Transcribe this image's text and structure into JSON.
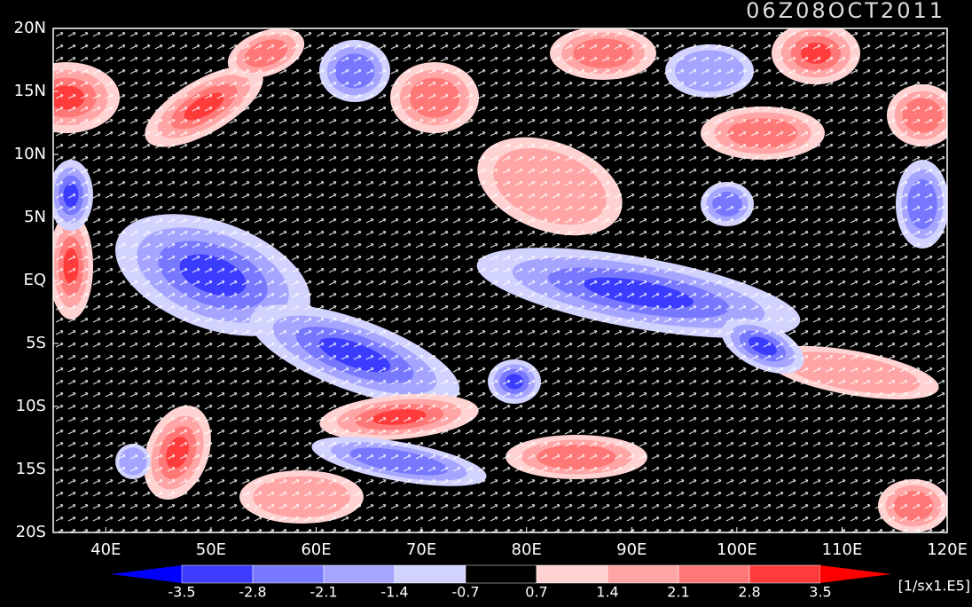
{
  "title": "06Z08OCT2011",
  "lat_labels": [
    "20N",
    "15N",
    "10N",
    "5N",
    "EQ",
    "5S",
    "10S",
    "15S",
    "20S"
  ],
  "lon_labels": [
    "40E",
    "50E",
    "60E",
    "70E",
    "80E",
    "90E",
    "100E",
    "110E",
    "120E"
  ],
  "colorbar": {
    "labels": [
      "-3.5",
      "-2.8",
      "-2.1",
      "-1.4",
      "-0.7",
      "0.7",
      "1.4",
      "2.1",
      "2.8",
      "3.5"
    ],
    "colors": [
      "#0000ff",
      "#3c3cff",
      "#7878ff",
      "#a5a5ff",
      "#d2d2ff",
      "#000000",
      "#ffd2d2",
      "#ffa5a5",
      "#ff7878",
      "#ff3c3c",
      "#ff0000"
    ],
    "unit": "[1/sx1.E5]"
  }
}
